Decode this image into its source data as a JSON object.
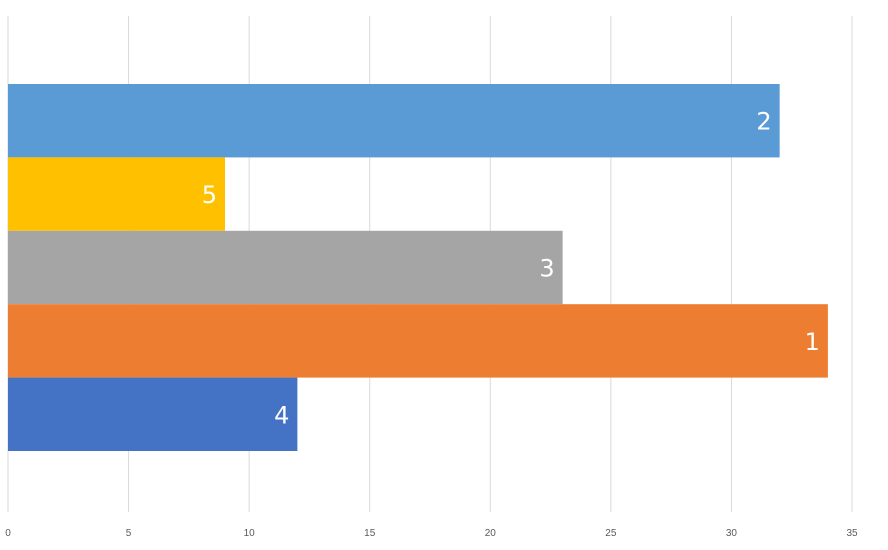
{
  "chart_data": {
    "type": "bar",
    "orientation": "horizontal",
    "title": "",
    "xlabel": "",
    "ylabel": "",
    "xlim": [
      0,
      35
    ],
    "x_ticks": [
      "0",
      "5",
      "10",
      "15",
      "20",
      "25",
      "30",
      "35"
    ],
    "grid": "vertical",
    "legend": "none",
    "bars": [
      {
        "label": "2",
        "value": 32,
        "color": "#5B9BD5"
      },
      {
        "label": "5",
        "value": 9,
        "color": "#FFC000"
      },
      {
        "label": "3",
        "value": 23,
        "color": "#A5A5A5"
      },
      {
        "label": "1",
        "value": 34,
        "color": "#ED7D31"
      },
      {
        "label": "4",
        "value": 12,
        "color": "#4472C4"
      }
    ]
  }
}
